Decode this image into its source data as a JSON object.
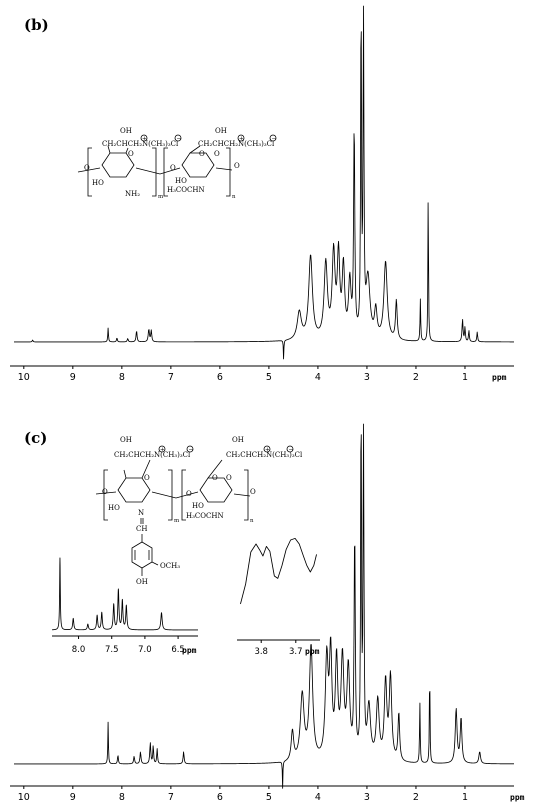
{
  "chart_data": [
    {
      "panel": "(b)",
      "type": "line",
      "xlabel": "ppm",
      "xlim": [
        10.2,
        0.0
      ],
      "reversed_x": true,
      "ticks": [
        "10",
        "9",
        "8",
        "7",
        "6",
        "5",
        "4",
        "3",
        "2",
        "1"
      ],
      "structure_labels": {
        "side_chain_1": "OH",
        "side_chain_2": "CH₂CHCH₂N(CH₃)₃Cl",
        "side_chain_3": "OH",
        "side_chain_4": "CH₂CHCH₂N(CH₃)₃Cl",
        "ho_1": "HO",
        "ho_2": "HO",
        "nh2": "NH₂",
        "nhac": "H₃COCHN",
        "m": "m",
        "n": "n",
        "o1": "O",
        "o2": "O",
        "o3": "O",
        "o4": "O",
        "o5": "O",
        "o6": "O"
      },
      "peaks": [
        {
          "ppm": 9.82,
          "height": 0.007,
          "width": 0.01
        },
        {
          "ppm": 8.28,
          "height": 0.05,
          "width": 0.008
        },
        {
          "ppm": 8.1,
          "height": 0.015,
          "width": 0.01
        },
        {
          "ppm": 7.88,
          "height": 0.012,
          "width": 0.012
        },
        {
          "ppm": 7.7,
          "height": 0.04,
          "width": 0.012
        },
        {
          "ppm": 7.45,
          "height": 0.045,
          "width": 0.014
        },
        {
          "ppm": 7.4,
          "height": 0.04,
          "width": 0.012
        },
        {
          "ppm": 4.38,
          "height": 0.1,
          "width": 0.05
        },
        {
          "ppm": 4.15,
          "height": 0.3,
          "width": 0.045
        },
        {
          "ppm": 3.84,
          "height": 0.27,
          "width": 0.04
        },
        {
          "ppm": 3.68,
          "height": 0.3,
          "width": 0.035
        },
        {
          "ppm": 3.58,
          "height": 0.29,
          "width": 0.03
        },
        {
          "ppm": 3.48,
          "height": 0.25,
          "width": 0.03
        },
        {
          "ppm": 3.35,
          "height": 0.2,
          "width": 0.03
        },
        {
          "ppm": 3.26,
          "height": 0.75,
          "width": 0.014
        },
        {
          "ppm": 3.12,
          "height": 1.2,
          "width": 0.01
        },
        {
          "ppm": 3.07,
          "height": 1.2,
          "width": 0.01
        },
        {
          "ppm": 2.98,
          "height": 0.22,
          "width": 0.05
        },
        {
          "ppm": 2.82,
          "height": 0.1,
          "width": 0.03
        },
        {
          "ppm": 2.62,
          "height": 0.28,
          "width": 0.04
        },
        {
          "ppm": 2.4,
          "height": 0.14,
          "width": 0.02
        },
        {
          "ppm": 1.91,
          "height": 0.15,
          "width": 0.008
        },
        {
          "ppm": 1.75,
          "height": 0.56,
          "width": 0.007
        },
        {
          "ppm": 1.05,
          "height": 0.08,
          "width": 0.012
        },
        {
          "ppm": 1.0,
          "height": 0.05,
          "width": 0.01
        },
        {
          "ppm": 0.92,
          "height": 0.04,
          "width": 0.01
        },
        {
          "ppm": 0.75,
          "height": 0.035,
          "width": 0.01
        }
      ],
      "negative_peaks": [
        {
          "ppm": 4.7,
          "height": 0.07,
          "width": 0.006
        }
      ]
    },
    {
      "panel": "(c)",
      "type": "line",
      "xlabel": "ppm",
      "xlim": [
        10.2,
        0.0
      ],
      "reversed_x": true,
      "ticks": [
        "10",
        "9",
        "8",
        "7",
        "6",
        "5",
        "4",
        "3",
        "2",
        "1"
      ],
      "structure_labels": {
        "side_chain_1": "OH",
        "side_chain_2": "CH₂CHCH₂N(CH₃)₃Cl",
        "side_chain_3": "OH",
        "side_chain_4": "CH₂CHCH₂N(CH₃)₃Cl",
        "ho_1": "HO",
        "ho_2": "HO",
        "n_imine": "N",
        "ch": "CH",
        "nhac": "H₃COCHN",
        "ome": "OCH₃",
        "oh": "OH",
        "m": "m",
        "n": "n",
        "o1": "O",
        "o2": "O",
        "o3": "O",
        "o4": "O",
        "o5": "O",
        "o6": "O"
      },
      "peaks": [
        {
          "ppm": 8.28,
          "height": 0.14,
          "width": 0.007
        },
        {
          "ppm": 8.08,
          "height": 0.03,
          "width": 0.01
        },
        {
          "ppm": 7.75,
          "height": 0.025,
          "width": 0.012
        },
        {
          "ppm": 7.62,
          "height": 0.04,
          "width": 0.012
        },
        {
          "ppm": 7.42,
          "height": 0.07,
          "width": 0.012
        },
        {
          "ppm": 7.36,
          "height": 0.06,
          "width": 0.01
        },
        {
          "ppm": 7.28,
          "height": 0.05,
          "width": 0.01
        },
        {
          "ppm": 6.74,
          "height": 0.04,
          "width": 0.012
        },
        {
          "ppm": 4.52,
          "height": 0.1,
          "width": 0.03
        },
        {
          "ppm": 4.32,
          "height": 0.22,
          "width": 0.045
        },
        {
          "ppm": 4.14,
          "height": 0.38,
          "width": 0.04
        },
        {
          "ppm": 3.82,
          "height": 0.33,
          "width": 0.035
        },
        {
          "ppm": 3.74,
          "height": 0.34,
          "width": 0.03
        },
        {
          "ppm": 3.62,
          "height": 0.32,
          "width": 0.03
        },
        {
          "ppm": 3.5,
          "height": 0.33,
          "width": 0.035
        },
        {
          "ppm": 3.38,
          "height": 0.3,
          "width": 0.035
        },
        {
          "ppm": 3.25,
          "height": 0.75,
          "width": 0.014
        },
        {
          "ppm": 3.12,
          "height": 1.2,
          "width": 0.01
        },
        {
          "ppm": 3.07,
          "height": 1.2,
          "width": 0.01
        },
        {
          "ppm": 2.96,
          "height": 0.18,
          "width": 0.04
        },
        {
          "ppm": 2.78,
          "height": 0.2,
          "width": 0.035
        },
        {
          "ppm": 2.62,
          "height": 0.26,
          "width": 0.03
        },
        {
          "ppm": 2.52,
          "height": 0.28,
          "width": 0.03
        },
        {
          "ppm": 2.35,
          "height": 0.16,
          "width": 0.02
        },
        {
          "ppm": 1.92,
          "height": 0.2,
          "width": 0.008
        },
        {
          "ppm": 1.72,
          "height": 0.34,
          "width": 0.007
        },
        {
          "ppm": 1.18,
          "height": 0.18,
          "width": 0.022
        },
        {
          "ppm": 1.08,
          "height": 0.15,
          "width": 0.02
        },
        {
          "ppm": 0.7,
          "height": 0.04,
          "width": 0.02
        }
      ],
      "negative_peaks": [
        {
          "ppm": 4.72,
          "height": 0.09,
          "width": 0.006
        }
      ],
      "inset_aromatic": {
        "xlim": [
          8.4,
          6.2
        ],
        "ticks": [
          "8.0",
          "7.5",
          "7.0",
          "6.5"
        ],
        "xlabel": "ppm",
        "peaks": [
          {
            "ppm": 8.28,
            "height": 1.0,
            "width": 0.006
          },
          {
            "ppm": 8.08,
            "height": 0.16,
            "width": 0.01
          },
          {
            "ppm": 7.86,
            "height": 0.08,
            "width": 0.01
          },
          {
            "ppm": 7.72,
            "height": 0.2,
            "width": 0.01
          },
          {
            "ppm": 7.65,
            "height": 0.24,
            "width": 0.01
          },
          {
            "ppm": 7.47,
            "height": 0.35,
            "width": 0.01
          },
          {
            "ppm": 7.4,
            "height": 0.55,
            "width": 0.01
          },
          {
            "ppm": 7.34,
            "height": 0.4,
            "width": 0.01
          },
          {
            "ppm": 7.28,
            "height": 0.33,
            "width": 0.01
          },
          {
            "ppm": 6.75,
            "height": 0.24,
            "width": 0.012
          }
        ]
      },
      "inset_zoom": {
        "xlim": [
          3.87,
          3.63
        ],
        "ticks": [
          "3.8",
          "3.7"
        ],
        "xlabel": "ppm",
        "points": [
          [
            3.86,
            0.1
          ],
          [
            3.845,
            0.35
          ],
          [
            3.83,
            0.75
          ],
          [
            3.815,
            0.85
          ],
          [
            3.805,
            0.78
          ],
          [
            3.795,
            0.7
          ],
          [
            3.785,
            0.82
          ],
          [
            3.775,
            0.76
          ],
          [
            3.762,
            0.45
          ],
          [
            3.752,
            0.42
          ],
          [
            3.74,
            0.58
          ],
          [
            3.728,
            0.78
          ],
          [
            3.715,
            0.9
          ],
          [
            3.702,
            0.92
          ],
          [
            3.69,
            0.85
          ],
          [
            3.678,
            0.7
          ],
          [
            3.668,
            0.58
          ],
          [
            3.658,
            0.5
          ],
          [
            3.648,
            0.58
          ],
          [
            3.64,
            0.72
          ]
        ]
      }
    }
  ]
}
